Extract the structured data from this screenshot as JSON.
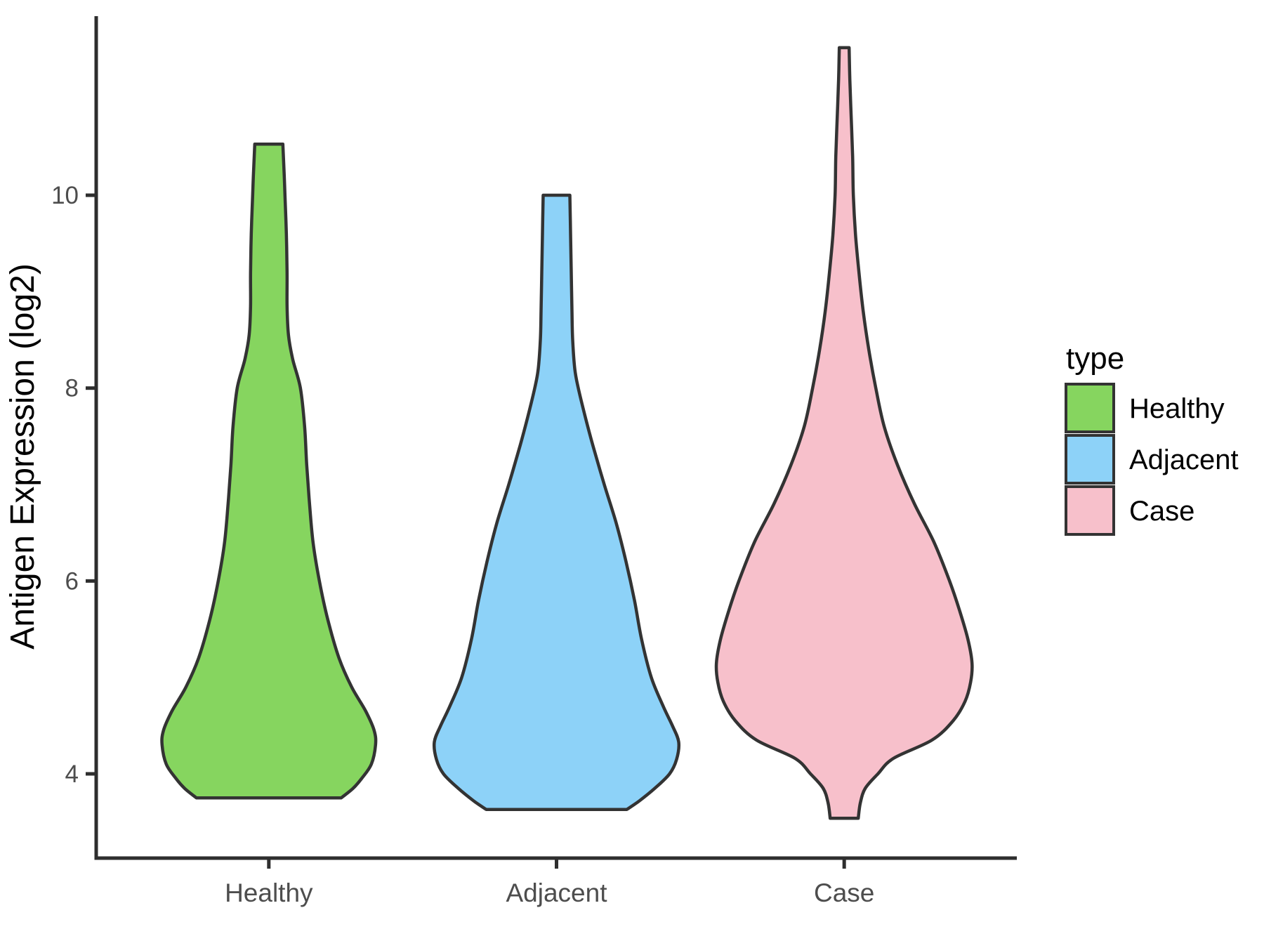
{
  "chart_data": {
    "type": "violin",
    "title": "",
    "xlabel": "",
    "ylabel": "Antigen Expression (log2)",
    "categories": [
      "Healthy",
      "Adjacent",
      "Case"
    ],
    "y_ticks": [
      4,
      6,
      8,
      10
    ],
    "y_axis_range": [
      3.1,
      11.9
    ],
    "grid": "off",
    "legend": {
      "title": "type",
      "position": "right",
      "entries": [
        {
          "label": "Healthy",
          "color": "#86d55f"
        },
        {
          "label": "Adjacent",
          "color": "#8dd2f8"
        },
        {
          "label": "Case",
          "color": "#f7c0cb"
        }
      ]
    },
    "style": {
      "outline_color": "#333333",
      "axis_color": "#2e2e2e",
      "tick_label_color": "#4d4d4d",
      "background": "#ffffff"
    },
    "violins": [
      {
        "name": "Healthy",
        "fill": "#86d55f",
        "min_value": 3.75,
        "max_value": 10.53,
        "profile": [
          [
            10.53,
            20
          ],
          [
            10.2,
            22
          ],
          [
            10.0,
            23
          ],
          [
            9.6,
            25
          ],
          [
            9.2,
            26
          ],
          [
            8.85,
            26
          ],
          [
            8.55,
            28
          ],
          [
            8.3,
            34
          ],
          [
            8.0,
            45
          ],
          [
            7.6,
            51
          ],
          [
            7.2,
            54
          ],
          [
            6.8,
            58
          ],
          [
            6.4,
            63
          ],
          [
            6.0,
            72
          ],
          [
            5.6,
            84
          ],
          [
            5.2,
            100
          ],
          [
            4.9,
            118
          ],
          [
            4.65,
            138
          ],
          [
            4.45,
            150
          ],
          [
            4.3,
            152
          ],
          [
            4.1,
            146
          ],
          [
            3.95,
            132
          ],
          [
            3.85,
            120
          ],
          [
            3.75,
            103
          ]
        ]
      },
      {
        "name": "Adjacent",
        "fill": "#8dd2f8",
        "min_value": 3.63,
        "max_value": 10.0,
        "profile": [
          [
            10.0,
            19
          ],
          [
            9.6,
            20
          ],
          [
            9.2,
            21
          ],
          [
            8.8,
            22
          ],
          [
            8.5,
            23
          ],
          [
            8.2,
            26
          ],
          [
            8.0,
            31
          ],
          [
            7.7,
            41
          ],
          [
            7.4,
            52
          ],
          [
            7.0,
            68
          ],
          [
            6.6,
            85
          ],
          [
            6.2,
            99
          ],
          [
            5.8,
            111
          ],
          [
            5.4,
            121
          ],
          [
            5.0,
            135
          ],
          [
            4.7,
            152
          ],
          [
            4.5,
            165
          ],
          [
            4.33,
            174
          ],
          [
            4.15,
            171
          ],
          [
            4.0,
            161
          ],
          [
            3.85,
            140
          ],
          [
            3.72,
            118
          ],
          [
            3.63,
            100
          ]
        ]
      },
      {
        "name": "Case",
        "fill": "#f7c0cb",
        "min_value": 3.54,
        "max_value": 11.53,
        "profile": [
          [
            11.53,
            7
          ],
          [
            11.2,
            8
          ],
          [
            10.8,
            10
          ],
          [
            10.4,
            12
          ],
          [
            10.0,
            13
          ],
          [
            9.6,
            16
          ],
          [
            9.2,
            21
          ],
          [
            8.8,
            27
          ],
          [
            8.4,
            35
          ],
          [
            8.0,
            45
          ],
          [
            7.6,
            57
          ],
          [
            7.2,
            76
          ],
          [
            6.8,
            100
          ],
          [
            6.4,
            128
          ],
          [
            6.0,
            150
          ],
          [
            5.7,
            164
          ],
          [
            5.4,
            176
          ],
          [
            5.15,
            182
          ],
          [
            4.95,
            180
          ],
          [
            4.75,
            172
          ],
          [
            4.55,
            155
          ],
          [
            4.35,
            125
          ],
          [
            4.16,
            70
          ],
          [
            4.0,
            48
          ],
          [
            3.85,
            30
          ],
          [
            3.7,
            23
          ],
          [
            3.54,
            20
          ]
        ]
      }
    ]
  }
}
